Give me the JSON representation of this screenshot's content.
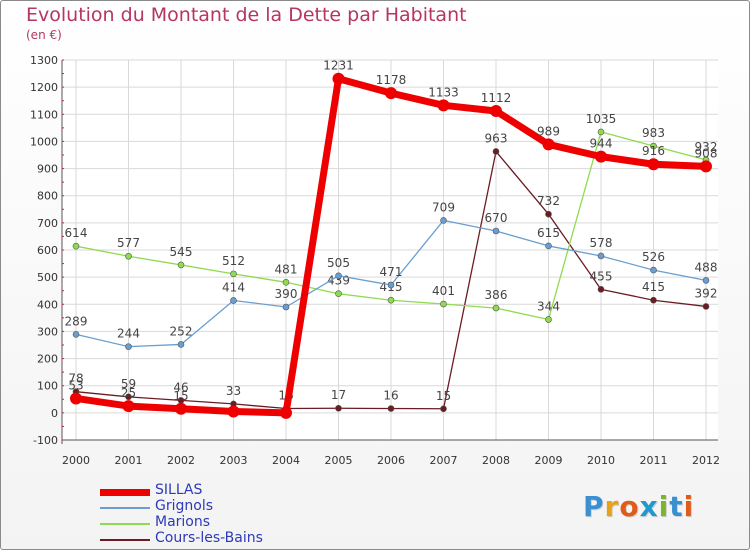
{
  "title": "Evolution du Montant de la Dette par Habitant",
  "subtitle": "(en €)",
  "logo": {
    "text": "Proxiti",
    "colors": [
      "#3a8fd0",
      "#e8a21a",
      "#e05a1a",
      "#1f9ad0",
      "#7bb52a",
      "#3a8fd0",
      "#e05a1a"
    ]
  },
  "chart_data": {
    "type": "line",
    "x": [
      "2000",
      "2001",
      "2002",
      "2003",
      "2004",
      "2005",
      "2006",
      "2007",
      "2008",
      "2009",
      "2010",
      "2011",
      "2012"
    ],
    "ylim": [
      -100,
      1300
    ],
    "yticks": [
      "-100",
      "0",
      "100",
      "200",
      "300",
      "400",
      "500",
      "600",
      "700",
      "800",
      "900",
      "1000",
      "1100",
      "1200",
      "1300"
    ],
    "grid": true,
    "legend_position": "bottom-left",
    "series": [
      {
        "name": "Cours-les-Bains",
        "color": "#6b1c22",
        "width": 1.3,
        "marker": 3,
        "values": [
          78,
          59,
          46,
          33,
          16,
          17,
          16,
          15,
          963,
          732,
          455,
          415,
          392
        ],
        "labels": [
          "78",
          "59",
          "46",
          "33",
          "16",
          "17",
          "16",
          "15",
          "963",
          "732",
          "455",
          "415",
          "392"
        ]
      },
      {
        "name": "Marions",
        "color": "#8fdb4f",
        "width": 1.3,
        "marker": 3,
        "values": [
          614,
          577,
          545,
          512,
          481,
          439,
          415,
          401,
          386,
          344,
          1035,
          983,
          932
        ],
        "labels": [
          "614",
          "577",
          "545",
          "512",
          "481",
          "439",
          "415",
          "401",
          "386",
          "344",
          "1035",
          "983",
          "932"
        ]
      },
      {
        "name": "Grignols",
        "color": "#6a9ed0",
        "width": 1.3,
        "marker": 3,
        "values": [
          289,
          244,
          252,
          414,
          390,
          505,
          471,
          709,
          670,
          615,
          578,
          526,
          488
        ],
        "labels": [
          "289",
          "244",
          "252",
          "414",
          "390",
          "505",
          "471",
          "709",
          "670",
          "615",
          "578",
          "526",
          "488"
        ]
      },
      {
        "name": "SILLAS",
        "color": "#ee0000",
        "width": 7,
        "marker": 6,
        "values": [
          53,
          25,
          15,
          5,
          0,
          1231,
          1178,
          1133,
          1112,
          989,
          944,
          916,
          908
        ],
        "labels": [
          "53",
          "25",
          "15",
          "",
          "",
          "1231",
          "1178",
          "1133",
          "1112",
          "989",
          "944",
          "916",
          "908"
        ]
      }
    ]
  },
  "legend": [
    {
      "name": "SILLAS",
      "color": "#ee0000",
      "thickness": 7
    },
    {
      "name": "Grignols",
      "color": "#6a9ed0",
      "thickness": 2
    },
    {
      "name": "Marions",
      "color": "#8fdb4f",
      "thickness": 2
    },
    {
      "name": "Cours-les-Bains",
      "color": "#6b1c22",
      "thickness": 2
    }
  ]
}
